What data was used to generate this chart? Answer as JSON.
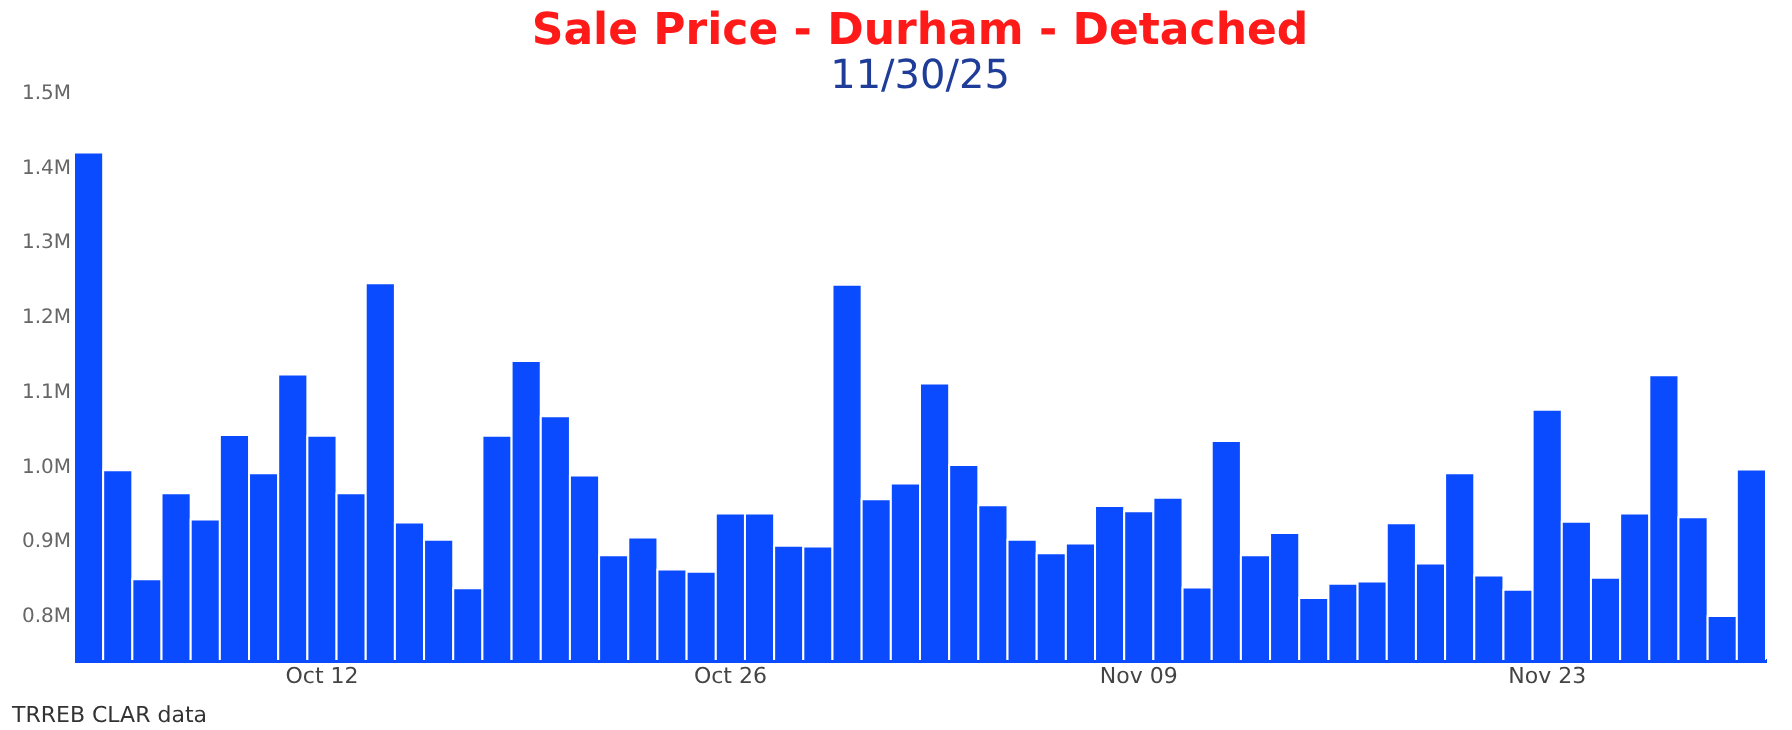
{
  "chart_data": {
    "type": "bar",
    "title": "Sale Price - Durham - Detached",
    "subtitle": "11/30/25",
    "categories": [
      null,
      null,
      null,
      null,
      null,
      null,
      null,
      null,
      "Oct 12",
      null,
      null,
      null,
      null,
      null,
      null,
      null,
      null,
      null,
      null,
      null,
      null,
      null,
      "Oct 26",
      null,
      null,
      null,
      null,
      null,
      null,
      null,
      null,
      null,
      null,
      null,
      null,
      null,
      "Nov 09",
      null,
      null,
      null,
      null,
      null,
      null,
      null,
      null,
      null,
      null,
      null,
      null,
      null,
      "Nov 23",
      null,
      null,
      null,
      null,
      null,
      null,
      null
    ],
    "values": [
      1419000,
      994000,
      848000,
      963000,
      928000,
      1041000,
      990000,
      1122000,
      1040000,
      963000,
      1244000,
      924000,
      901000,
      836000,
      1040000,
      1140000,
      1066000,
      987000,
      880000,
      904000,
      861000,
      858000,
      936000,
      936000,
      893000,
      892000,
      1242000,
      955000,
      976000,
      1110000,
      1001000,
      947000,
      901000,
      883000,
      896000,
      946000,
      939000,
      957000,
      837000,
      1033000,
      880000,
      910000,
      823000,
      842000,
      845000,
      923000,
      869000,
      990000,
      853000,
      834000,
      1075000,
      925000,
      850000,
      936000,
      1121000,
      931000,
      799000,
      995000
    ],
    "color": "#0a4bff",
    "ylim": [
      740000,
      1500000
    ],
    "yticks": [
      {
        "value": 800000,
        "label": "0.8M"
      },
      {
        "value": 900000,
        "label": "0.9M"
      },
      {
        "value": 1000000,
        "label": "1.0M"
      },
      {
        "value": 1100000,
        "label": "1.1M"
      },
      {
        "value": 1200000,
        "label": "1.2M"
      },
      {
        "value": 1300000,
        "label": "1.3M"
      },
      {
        "value": 1400000,
        "label": "1.4M"
      },
      {
        "value": 1500000,
        "label": "1.5M"
      }
    ],
    "grid": false,
    "annotations": [
      "TRREB CLAR data"
    ]
  }
}
